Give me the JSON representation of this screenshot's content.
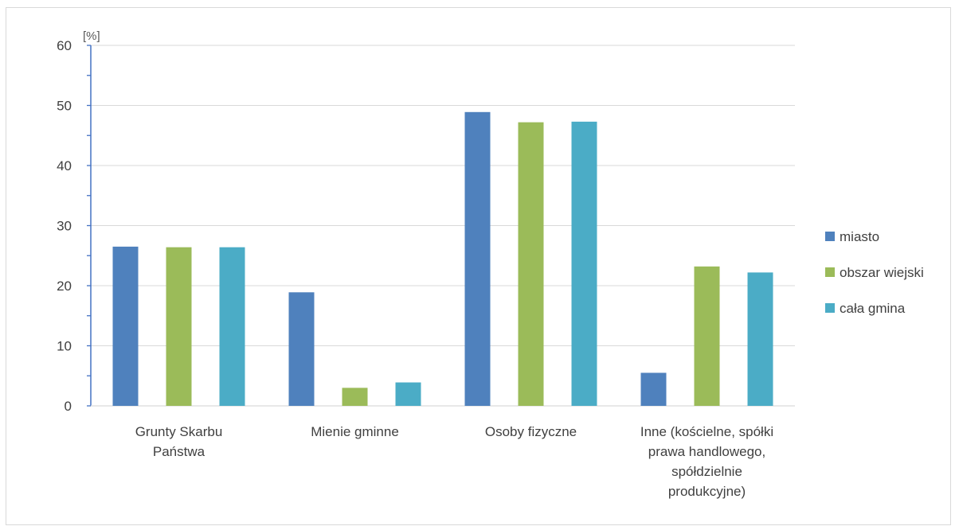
{
  "chart_data": {
    "type": "bar",
    "unit_label": "[%]",
    "categories": [
      [
        "Grunty Skarbu",
        "Państwa"
      ],
      [
        "Mienie gminne"
      ],
      [
        "Osoby fizyczne"
      ],
      [
        "Inne (kościelne, spółki",
        "prawa handlowego,",
        "spółdzielnie",
        "produkcyjne)"
      ]
    ],
    "series": [
      {
        "name": "miasto",
        "color": "#4f81bd",
        "values": [
          26.5,
          18.9,
          48.9,
          5.5
        ]
      },
      {
        "name": "obszar wiejski",
        "color": "#9bbb59",
        "values": [
          26.4,
          3.0,
          47.2,
          23.2
        ]
      },
      {
        "name": "cała gmina",
        "color": "#4bacc6",
        "values": [
          26.4,
          3.9,
          47.3,
          22.2
        ]
      }
    ],
    "ylim": [
      0,
      60
    ],
    "yticks": [
      0,
      10,
      20,
      30,
      40,
      50,
      60
    ],
    "grid": true,
    "legend_position": "right"
  }
}
